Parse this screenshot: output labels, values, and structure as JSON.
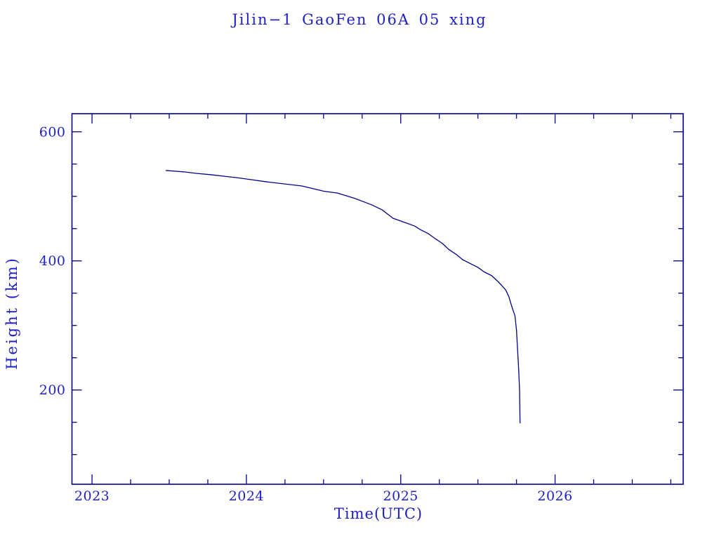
{
  "page": {
    "background": "#ffffff"
  },
  "chart_data": {
    "type": "line",
    "title": "Jilin−1 GaoFen 06A 05 xing",
    "xlabel": "Time(UTC)",
    "ylabel": "Height (km)",
    "xlim": [
      2022.87,
      2026.83
    ],
    "ylim": [
      54,
      628
    ],
    "grid": false,
    "legend": "none",
    "axis_color": "#00008b",
    "text_color": "#1e1ec8",
    "line_color": "#00008b",
    "x_major_ticks": [
      {
        "value": 2023,
        "label": "2023"
      },
      {
        "value": 2024,
        "label": "2024"
      },
      {
        "value": 2025,
        "label": "2025"
      },
      {
        "value": 2026,
        "label": "2026"
      }
    ],
    "x_minor_tick_step": 0.25,
    "y_major_ticks": [
      {
        "value": 200,
        "label": "200"
      },
      {
        "value": 400,
        "label": "400"
      },
      {
        "value": 600,
        "label": "600"
      }
    ],
    "y_minor_tick_step": 50,
    "series": [
      {
        "name": "orbital-height",
        "x": [
          2023.48,
          2023.59,
          2023.68,
          2023.77,
          2023.86,
          2023.95,
          2024.04,
          2024.13,
          2024.22,
          2024.36,
          2024.5,
          2024.59,
          2024.7,
          2024.81,
          2024.88,
          2024.95,
          2025.02,
          2025.09,
          2025.13,
          2025.18,
          2025.22,
          2025.27,
          2025.31,
          2025.36,
          2025.4,
          2025.45,
          2025.5,
          2025.54,
          2025.59,
          2025.63,
          2025.65,
          2025.68,
          2025.7,
          2025.71,
          2025.72,
          2025.74,
          2025.75,
          2025.755,
          2025.76,
          2025.765,
          2025.77,
          2025.773
        ],
        "y": [
          540,
          538,
          535.5,
          533.5,
          531,
          528.5,
          525.5,
          522.5,
          520,
          516,
          508,
          505,
          497,
          487,
          479,
          466,
          460,
          454,
          448,
          442,
          435,
          427,
          418,
          410,
          402,
          396,
          390,
          383,
          377,
          368,
          363,
          355,
          345,
          337,
          329,
          315,
          293,
          271,
          250,
          228,
          199,
          149
        ]
      }
    ]
  }
}
